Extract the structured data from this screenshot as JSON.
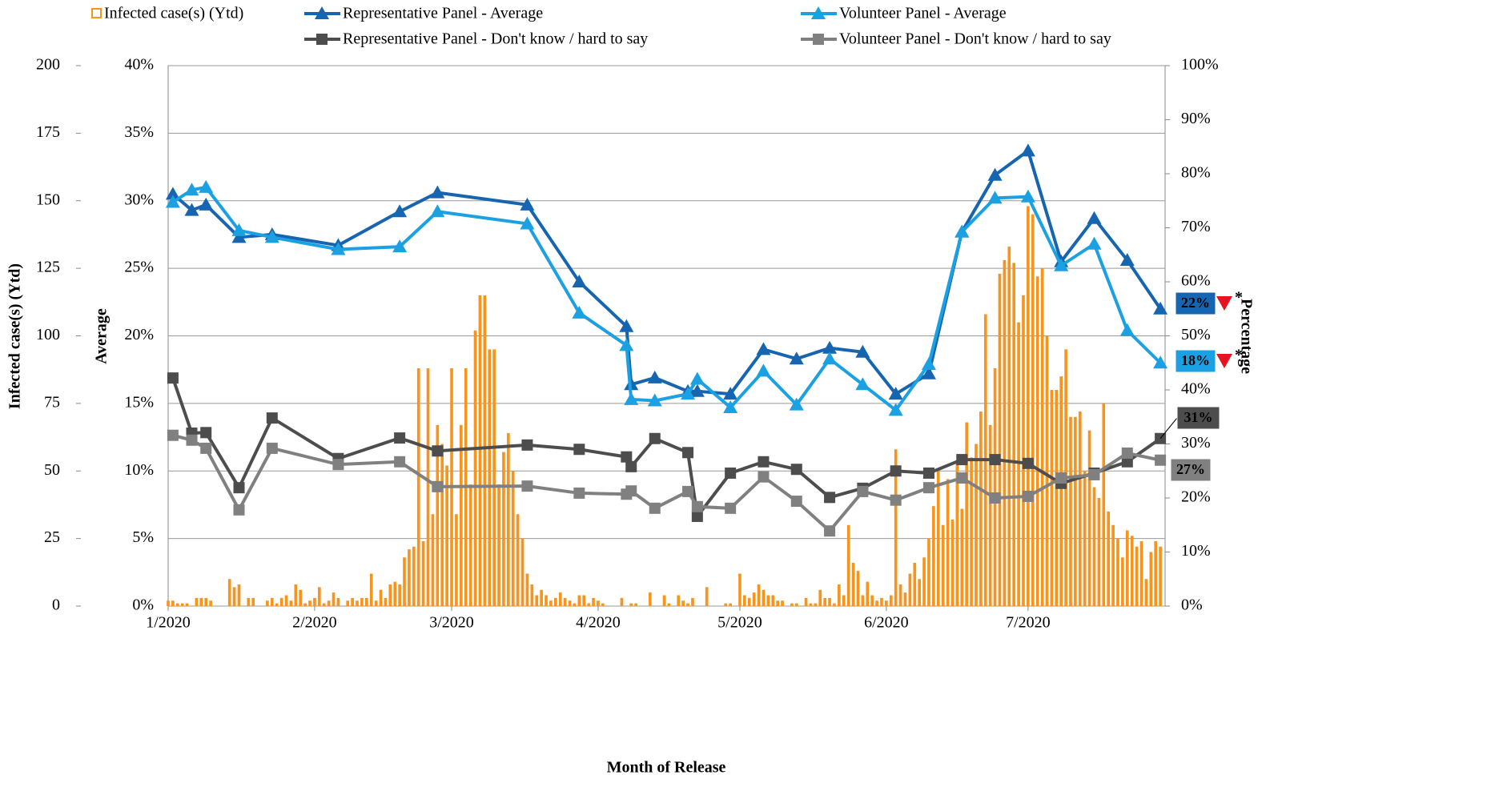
{
  "chart_data": {
    "type": "combo",
    "xlabel": "Month of Release",
    "ylabel": "Infected case(s) (Ytd)",
    "y2label": "Average",
    "y3label": "Percentage",
    "xlim": [
      0,
      211
    ],
    "xticks": [
      {
        "value": 0,
        "label": "1/2020"
      },
      {
        "value": 31,
        "label": "2/2020"
      },
      {
        "value": 60,
        "label": "3/2020"
      },
      {
        "value": 91,
        "label": "4/2020"
      },
      {
        "value": 121,
        "label": "5/2020"
      },
      {
        "value": 152,
        "label": "6/2020"
      },
      {
        "value": 182,
        "label": "7/2020"
      }
    ],
    "ylim": [
      0,
      200
    ],
    "yticks": [
      0,
      25,
      50,
      75,
      100,
      125,
      150,
      175,
      200
    ],
    "y2lim": [
      0,
      40
    ],
    "y2ticks": [
      {
        "value": 0,
        "label": "0%"
      },
      {
        "value": 5,
        "label": "5%"
      },
      {
        "value": 10,
        "label": "10%"
      },
      {
        "value": 15,
        "label": "15%"
      },
      {
        "value": 20,
        "label": "20%"
      },
      {
        "value": 25,
        "label": "25%"
      },
      {
        "value": 30,
        "label": "30%"
      },
      {
        "value": 35,
        "label": "35%"
      },
      {
        "value": 40,
        "label": "40%"
      }
    ],
    "y3lim": [
      0,
      100
    ],
    "y3ticks": [
      {
        "value": 0,
        "label": "0%"
      },
      {
        "value": 10,
        "label": "10%"
      },
      {
        "value": 20,
        "label": "20%"
      },
      {
        "value": 30,
        "label": "30%"
      },
      {
        "value": 40,
        "label": "40%"
      },
      {
        "value": 50,
        "label": "50%"
      },
      {
        "value": 60,
        "label": "60%"
      },
      {
        "value": 70,
        "label": "70%"
      },
      {
        "value": 80,
        "label": "80%"
      },
      {
        "value": 90,
        "label": "90%"
      },
      {
        "value": 100,
        "label": "100%"
      }
    ],
    "grid": true,
    "legend": "top",
    "series": [
      {
        "name": "Infected case(s) (Ytd)",
        "type": "bar",
        "axis": "y",
        "color": "#f7941d",
        "x": [
          0,
          1,
          2,
          3,
          4,
          5,
          6,
          7,
          8,
          9,
          10,
          11,
          12,
          13,
          14,
          15,
          16,
          17,
          18,
          19,
          20,
          21,
          22,
          23,
          24,
          25,
          26,
          27,
          28,
          29,
          30,
          31,
          32,
          33,
          34,
          35,
          36,
          37,
          38,
          39,
          40,
          41,
          42,
          43,
          44,
          45,
          46,
          47,
          48,
          49,
          50,
          51,
          52,
          53,
          54,
          55,
          56,
          57,
          58,
          59,
          60,
          61,
          62,
          63,
          64,
          65,
          66,
          67,
          68,
          69,
          70,
          71,
          72,
          73,
          74,
          75,
          76,
          77,
          78,
          79,
          80,
          81,
          82,
          83,
          84,
          85,
          86,
          87,
          88,
          89,
          90,
          91,
          92,
          93,
          94,
          95,
          96,
          97,
          98,
          99,
          100,
          101,
          102,
          103,
          104,
          105,
          106,
          107,
          108,
          109,
          110,
          111,
          112,
          113,
          114,
          115,
          116,
          117,
          118,
          119,
          120,
          121,
          122,
          123,
          124,
          125,
          126,
          127,
          128,
          129,
          130,
          131,
          132,
          133,
          134,
          135,
          136,
          137,
          138,
          139,
          140,
          141,
          142,
          143,
          144,
          145,
          146,
          147,
          148,
          149,
          150,
          151,
          152,
          153,
          154,
          155,
          156,
          157,
          158,
          159,
          160,
          161,
          162,
          163,
          164,
          165,
          166,
          167,
          168,
          169,
          170,
          171,
          172,
          173,
          174,
          175,
          176,
          177,
          178,
          179,
          180,
          181,
          182,
          183,
          184,
          185,
          186,
          187,
          188,
          189,
          190,
          191,
          192,
          193,
          194,
          195,
          196,
          197,
          198,
          199,
          200,
          201,
          202,
          203,
          204,
          205,
          206,
          207,
          208,
          209,
          210
        ],
        "values": [
          2,
          2,
          1,
          1,
          1,
          0,
          3,
          3,
          3,
          2,
          0,
          0,
          0,
          10,
          7,
          8,
          0,
          3,
          3,
          0,
          0,
          2,
          3,
          1,
          3,
          4,
          2,
          8,
          6,
          1,
          2,
          3,
          7,
          1,
          2,
          5,
          3,
          0,
          2,
          3,
          2,
          3,
          3,
          12,
          2,
          6,
          3,
          8,
          9,
          8,
          18,
          21,
          22,
          88,
          24,
          88,
          34,
          67,
          60,
          52,
          88,
          34,
          67,
          88,
          45,
          102,
          115,
          115,
          95,
          95,
          45,
          57,
          64,
          50,
          34,
          25,
          12,
          8,
          4,
          6,
          4,
          2,
          3,
          5,
          3,
          2,
          1,
          4,
          4,
          1,
          3,
          2,
          1,
          0,
          0,
          0,
          3,
          0,
          1,
          1,
          0,
          0,
          5,
          0,
          0,
          4,
          1,
          0,
          4,
          2,
          1,
          3,
          0,
          0,
          7,
          0,
          0,
          0,
          1,
          1,
          0,
          12,
          4,
          3,
          5,
          8,
          6,
          4,
          4,
          2,
          2,
          0,
          1,
          1,
          0,
          3,
          1,
          1,
          6,
          3,
          3,
          1,
          8,
          4,
          30,
          16,
          13,
          4,
          9,
          4,
          2,
          3,
          2,
          4,
          58,
          8,
          5,
          12,
          16,
          10,
          18,
          25,
          37,
          50,
          30,
          47,
          32,
          53,
          36,
          68,
          55,
          60,
          72,
          108,
          67,
          88,
          123,
          128,
          133,
          127,
          105,
          115,
          148,
          145,
          122,
          125,
          100,
          80,
          80,
          85,
          95,
          70,
          70,
          72,
          50,
          65,
          44,
          40,
          75,
          35,
          30,
          25,
          18,
          28,
          26,
          22,
          24,
          10,
          20,
          24,
          22
        ]
      },
      {
        "name": "Representative Panel - Average",
        "type": "line",
        "marker": "triangle",
        "axis": "y2",
        "color": "#1565b0",
        "x": [
          1,
          5,
          8,
          15,
          22,
          36,
          49,
          57,
          76,
          87,
          97,
          98,
          103,
          110,
          112,
          119,
          126,
          133,
          140,
          147,
          154,
          161,
          168,
          175,
          182,
          189,
          196,
          203,
          210
        ],
        "values": [
          30.5,
          29.3,
          29.7,
          27.3,
          27.5,
          26.7,
          29.2,
          30.6,
          29.7,
          24.0,
          20.7,
          16.4,
          16.9,
          15.9,
          15.9,
          15.7,
          19.0,
          18.3,
          19.1,
          18.8,
          15.7,
          17.2,
          27.7,
          31.9,
          33.7,
          25.5,
          28.7,
          25.6,
          22
        ],
        "end_label": "22%",
        "flag": "*"
      },
      {
        "name": "Representative Panel - Don't know / hard to say",
        "type": "line",
        "marker": "square",
        "axis": "y3",
        "color": "#4d4d4d",
        "x": [
          1,
          5,
          8,
          15,
          22,
          36,
          49,
          57,
          76,
          87,
          97,
          98,
          103,
          110,
          112,
          119,
          126,
          133,
          140,
          147,
          154,
          161,
          168,
          175,
          182,
          189,
          196,
          203,
          210
        ],
        "values": [
          42.2,
          32.0,
          32.1,
          21.9,
          34.8,
          27.3,
          31.1,
          28.7,
          29.8,
          29.0,
          27.6,
          25.8,
          31.0,
          28.4,
          16.6,
          24.6,
          26.7,
          25.3,
          20.1,
          21.8,
          25.0,
          24.6,
          27.1,
          27.1,
          26.4,
          22.7,
          24.6,
          26.7,
          31
        ],
        "end_label": "31%"
      },
      {
        "name": "Volunteer Panel - Average",
        "type": "line",
        "marker": "triangle",
        "axis": "y2",
        "color": "#1ba1e2",
        "x": [
          1,
          5,
          8,
          15,
          22,
          36,
          49,
          57,
          76,
          87,
          97,
          98,
          103,
          110,
          112,
          119,
          126,
          133,
          140,
          147,
          154,
          161,
          168,
          175,
          182,
          189,
          196,
          203,
          210
        ],
        "values": [
          29.9,
          30.8,
          31.0,
          27.8,
          27.3,
          26.4,
          26.6,
          29.2,
          28.3,
          21.7,
          19.3,
          15.3,
          15.2,
          15.7,
          16.8,
          14.7,
          17.4,
          14.9,
          18.3,
          16.4,
          14.5,
          17.9,
          27.7,
          30.2,
          30.3,
          25.2,
          26.8,
          20.4,
          18
        ],
        "end_label": "18%",
        "flag": "*"
      },
      {
        "name": "Volunteer Panel - Don't know / hard to say",
        "type": "line",
        "marker": "square",
        "axis": "y3",
        "color": "#808080",
        "x": [
          1,
          5,
          8,
          15,
          22,
          36,
          49,
          57,
          76,
          87,
          97,
          98,
          103,
          110,
          112,
          119,
          126,
          133,
          140,
          147,
          154,
          161,
          168,
          175,
          182,
          189,
          196,
          203,
          210
        ],
        "values": [
          31.6,
          30.7,
          29.2,
          17.8,
          29.2,
          26.2,
          26.7,
          22.1,
          22.2,
          20.9,
          20.7,
          21.3,
          18.1,
          21.2,
          18.4,
          18.1,
          23.9,
          19.4,
          13.9,
          21.2,
          19.6,
          21.9,
          23.7,
          20.0,
          20.3,
          23.7,
          24.3,
          28.3,
          27
        ],
        "end_label": "27%"
      }
    ]
  }
}
